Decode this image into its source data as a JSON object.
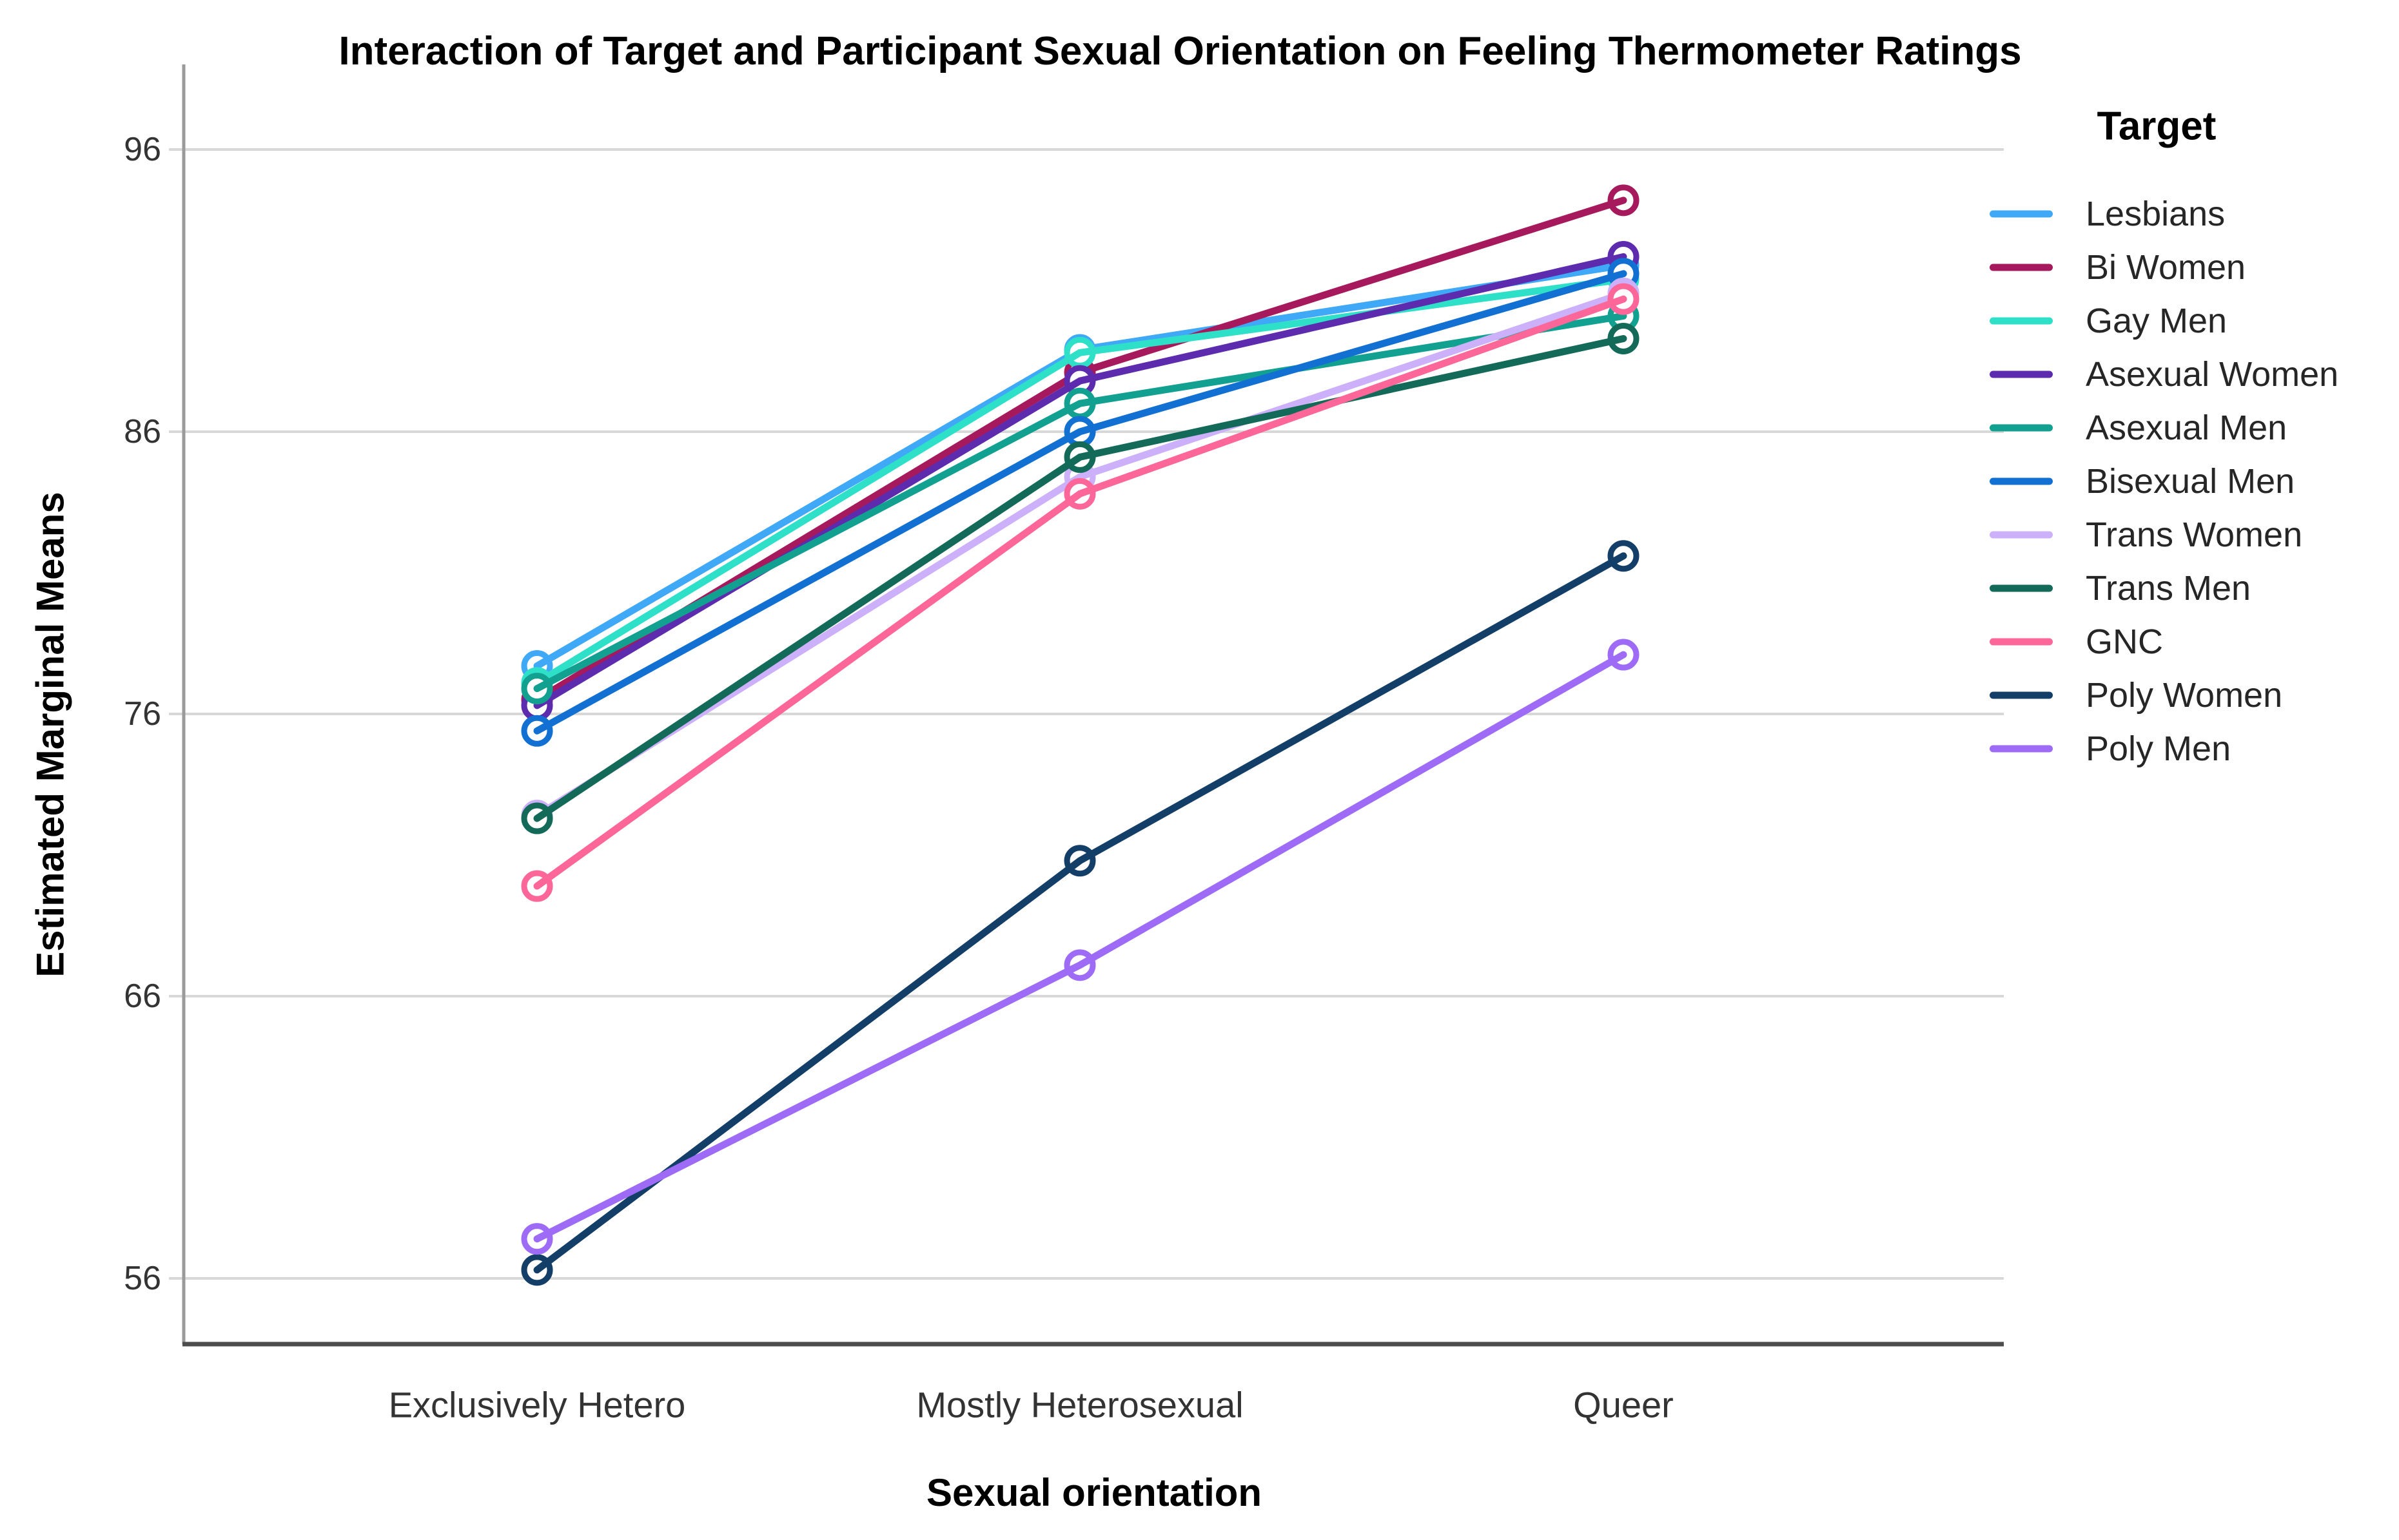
{
  "chart": {
    "title": "Interaction of Target and Participant Sexual Orientation on Feeling Thermometer Ratings",
    "y_axis_title": "Estimated Marginal Means",
    "x_axis_title": "Sexual orientation",
    "legend_title": "Target"
  },
  "chart_data": {
    "type": "line",
    "title": "Interaction of Target and Participant Sexual Orientation on Feeling Thermometer Ratings",
    "xlabel": "Sexual orientation",
    "ylabel": "Estimated Marginal Means",
    "categories": [
      "Exclusively Hetero",
      "Mostly Heterosexual",
      "Queer"
    ],
    "y_ticks": [
      56,
      66,
      76,
      86,
      96
    ],
    "ylim": [
      54,
      99
    ],
    "grid": "horizontal-only",
    "legend_position": "right",
    "legend_title": "Target",
    "marker": "open-circle",
    "series": [
      {
        "name": "Lesbians",
        "color": "#3FA9F7",
        "values": [
          77.7,
          88.9,
          91.9
        ]
      },
      {
        "name": "Bi Women",
        "color": "#A6195C",
        "values": [
          76.5,
          88.1,
          94.2
        ]
      },
      {
        "name": "Gay Men",
        "color": "#2FE0C9",
        "values": [
          77.1,
          88.8,
          91.4
        ]
      },
      {
        "name": "Asexual Women",
        "color": "#5D2BAE",
        "values": [
          76.3,
          87.8,
          92.2
        ]
      },
      {
        "name": "Asexual Men",
        "color": "#12A191",
        "values": [
          76.9,
          87.0,
          90.1
        ]
      },
      {
        "name": "Bisexual Men",
        "color": "#1170D2",
        "values": [
          75.4,
          86.0,
          91.6
        ]
      },
      {
        "name": "Trans Women",
        "color": "#CDB0FA",
        "values": [
          72.4,
          84.4,
          90.9
        ]
      },
      {
        "name": "Trans Men",
        "color": "#136A58",
        "values": [
          72.3,
          85.1,
          89.3
        ]
      },
      {
        "name": "GNC",
        "color": "#FC6699",
        "values": [
          69.9,
          83.8,
          90.7
        ]
      },
      {
        "name": "Poly Women",
        "color": "#123E67",
        "values": [
          56.3,
          70.8,
          81.6
        ]
      },
      {
        "name": "Poly Men",
        "color": "#9D6BF5",
        "values": [
          57.4,
          67.1,
          78.1
        ]
      }
    ],
    "colors": {
      "gridline": "#D8D8D8",
      "y_axis_line": "#9A9A9A",
      "x_axis_line": "#4D4D4D",
      "tick_label": "#333333",
      "category_label": "#333333",
      "legend_label": "#262626"
    }
  }
}
